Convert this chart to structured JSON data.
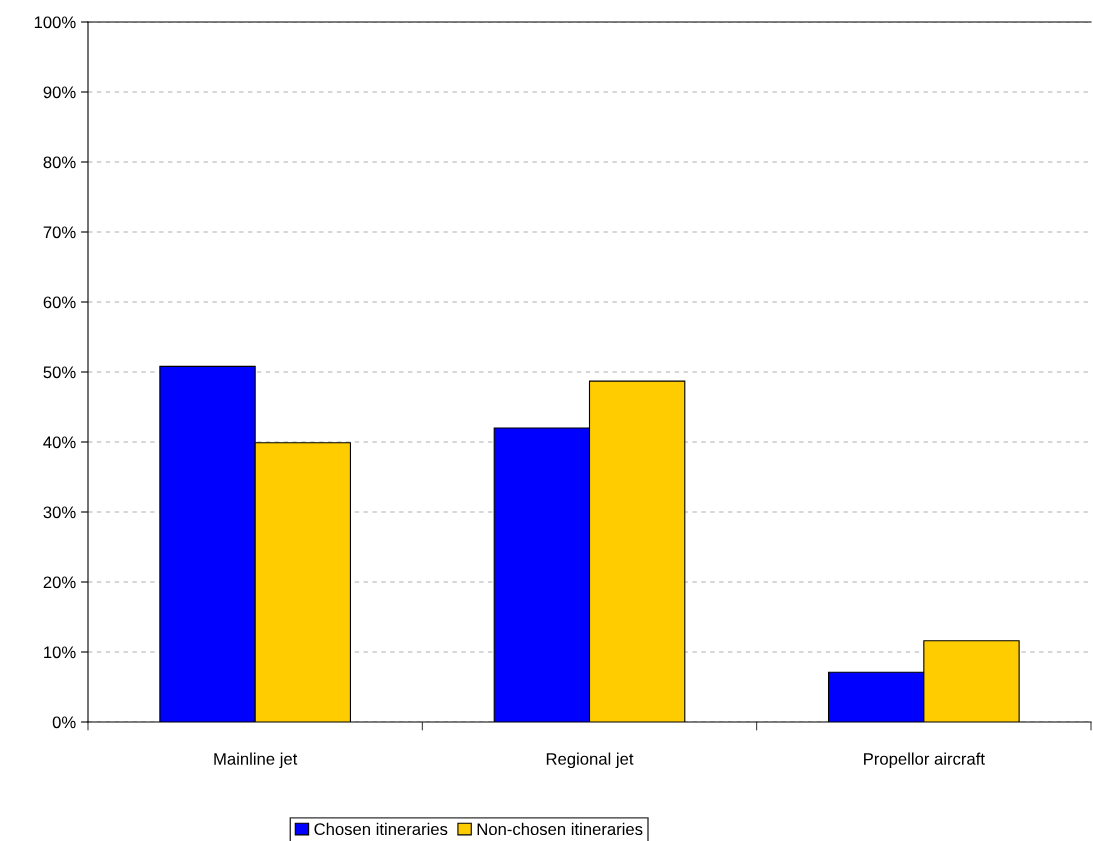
{
  "chart_data": {
    "type": "bar",
    "categories": [
      "Mainline jet",
      "Regional jet",
      "Propellor aircraft"
    ],
    "series": [
      {
        "name": "Chosen itineraries",
        "color": "#0000ff",
        "values": [
          50.8,
          42.0,
          7.1
        ]
      },
      {
        "name": "Non-chosen itineraries",
        "color": "#ffcc00",
        "values": [
          39.9,
          48.7,
          11.6
        ]
      }
    ],
    "ylim": [
      0,
      100
    ],
    "yticks": [
      {
        "value": 0,
        "label": "0%"
      },
      {
        "value": 10,
        "label": "10%"
      },
      {
        "value": 20,
        "label": "20%"
      },
      {
        "value": 30,
        "label": "30%"
      },
      {
        "value": 40,
        "label": "40%"
      },
      {
        "value": 50,
        "label": "50%"
      },
      {
        "value": 60,
        "label": "60%"
      },
      {
        "value": 70,
        "label": "70%"
      },
      {
        "value": 80,
        "label": "80%"
      },
      {
        "value": 90,
        "label": "90%"
      },
      {
        "value": 100,
        "label": "100%"
      }
    ],
    "grid": "y",
    "legend": "bottom"
  }
}
